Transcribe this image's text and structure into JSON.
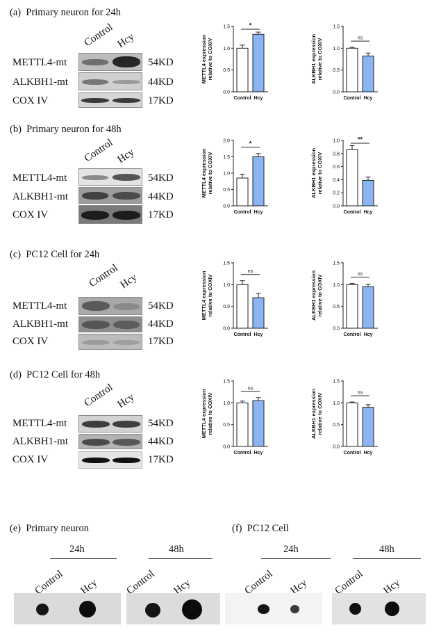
{
  "panels": [
    {
      "letter": "(a)",
      "title": "Primary neuron for 24h",
      "lanes": [
        "Control",
        "Hcy"
      ],
      "rows": [
        {
          "label": "METTL4-mt",
          "kd": "54KD"
        },
        {
          "label": "ALKBH1-mt",
          "kd": "44KD"
        },
        {
          "label": "COX IV",
          "kd": "17KD"
        }
      ],
      "charts": [
        {
          "type": "bar",
          "ylabel": "METTL4 expression relative to COXIV",
          "ylim": [
            0,
            1.5
          ],
          "yticks": [
            "0.0",
            "0.5",
            "1.0",
            "1.5"
          ],
          "categories": [
            "Control",
            "Hcy"
          ],
          "values": [
            1.0,
            1.32
          ],
          "errors": [
            0.07,
            0.05
          ],
          "sig": "*"
        },
        {
          "type": "bar",
          "ylabel": "ALKBH1 expression relative to COXIV",
          "ylim": [
            0,
            1.5
          ],
          "yticks": [
            "0.0",
            "0.5",
            "1.0",
            "1.5"
          ],
          "categories": [
            "Control",
            "Hcy"
          ],
          "values": [
            1.0,
            0.82
          ],
          "errors": [
            0.02,
            0.07
          ],
          "sig": "ns"
        }
      ]
    },
    {
      "letter": "(b)",
      "title": "Primary neuron for 48h",
      "lanes": [
        "Control",
        "Hcy"
      ],
      "rows": [
        {
          "label": "METTL4-mt",
          "kd": "54KD"
        },
        {
          "label": "ALKBH1-mt",
          "kd": "44KD"
        },
        {
          "label": "COX IV",
          "kd": "17KD"
        }
      ],
      "charts": [
        {
          "type": "bar",
          "ylabel": "METTL4 expression relative to COXIV",
          "ylim": [
            0,
            2.0
          ],
          "yticks": [
            "0.0",
            "0.5",
            "1.0",
            "1.5",
            "2.0"
          ],
          "categories": [
            "Control",
            "Hcy"
          ],
          "values": [
            0.85,
            1.5
          ],
          "errors": [
            0.12,
            0.1
          ],
          "sig": "*"
        },
        {
          "type": "bar",
          "ylabel": "ALKBH1 expression relative to COXIV",
          "ylim": [
            0,
            1.0
          ],
          "yticks": [
            "0.0",
            "0.2",
            "0.4",
            "0.6",
            "0.8",
            "1.0"
          ],
          "categories": [
            "Control",
            "Hcy"
          ],
          "values": [
            0.86,
            0.39
          ],
          "errors": [
            0.06,
            0.05
          ],
          "sig": "**"
        }
      ]
    },
    {
      "letter": "(c)",
      "title": "PC12 Cell for 24h",
      "lanes": [
        "Control",
        "Hcy"
      ],
      "rows": [
        {
          "label": "METTL4-mt",
          "kd": "54KD"
        },
        {
          "label": "ALKBH1-mt",
          "kd": "44KD"
        },
        {
          "label": "COX IV",
          "kd": "17KD"
        }
      ],
      "charts": [
        {
          "type": "bar",
          "ylabel": "METTL4 expression relative to COXIV",
          "ylim": [
            0,
            1.5
          ],
          "yticks": [
            "0.0",
            "0.5",
            "1.0",
            "1.5"
          ],
          "categories": [
            "Control",
            "Hcy"
          ],
          "values": [
            1.0,
            0.7
          ],
          "errors": [
            0.09,
            0.1
          ],
          "sig": "ns"
        },
        {
          "type": "bar",
          "ylabel": "ALKBH1 expression relative to COXIV",
          "ylim": [
            0,
            1.5
          ],
          "yticks": [
            "0.0",
            "0.5",
            "1.0",
            "1.5"
          ],
          "categories": [
            "Control",
            "Hcy"
          ],
          "values": [
            1.0,
            0.95
          ],
          "errors": [
            0.03,
            0.06
          ],
          "sig": "ns"
        }
      ]
    },
    {
      "letter": "(d)",
      "title": "PC12 Cell for 48h",
      "lanes": [
        "Control",
        "Hcy"
      ],
      "rows": [
        {
          "label": "METTL4-mt",
          "kd": "54KD"
        },
        {
          "label": "ALKBH1-mt",
          "kd": "44KD"
        },
        {
          "label": "COX IV",
          "kd": "17KD"
        }
      ],
      "charts": [
        {
          "type": "bar",
          "ylabel": "METTL4 expression relative to COXIV",
          "ylim": [
            0,
            1.5
          ],
          "yticks": [
            "0.0",
            "0.5",
            "1.0",
            "1.5"
          ],
          "categories": [
            "Control",
            "Hcy"
          ],
          "values": [
            1.0,
            1.05
          ],
          "errors": [
            0.04,
            0.07
          ],
          "sig": "ns"
        },
        {
          "type": "bar",
          "ylabel": "ALKBH1 expression relative to COXIV",
          "ylim": [
            0,
            1.5
          ],
          "yticks": [
            "0.0",
            "0.5",
            "1.0",
            "1.5"
          ],
          "categories": [
            "Control",
            "Hcy"
          ],
          "values": [
            1.0,
            0.9
          ],
          "errors": [
            0.02,
            0.06
          ],
          "sig": "ns"
        }
      ]
    }
  ],
  "dotblots": {
    "e": {
      "letter": "(e)",
      "title": "Primary neuron",
      "time1": "24h",
      "time2": "48h",
      "lanes": [
        "Control",
        "Hcy"
      ]
    },
    "f": {
      "letter": "(f)",
      "title": "PC12 Cell",
      "time1": "24h",
      "time2": "48h",
      "lanes": [
        "Control",
        "Hcy"
      ]
    }
  },
  "colors": {
    "control_bar": "#ffffff",
    "hcy_bar": "#8cb4f2",
    "axis": "#222222"
  }
}
